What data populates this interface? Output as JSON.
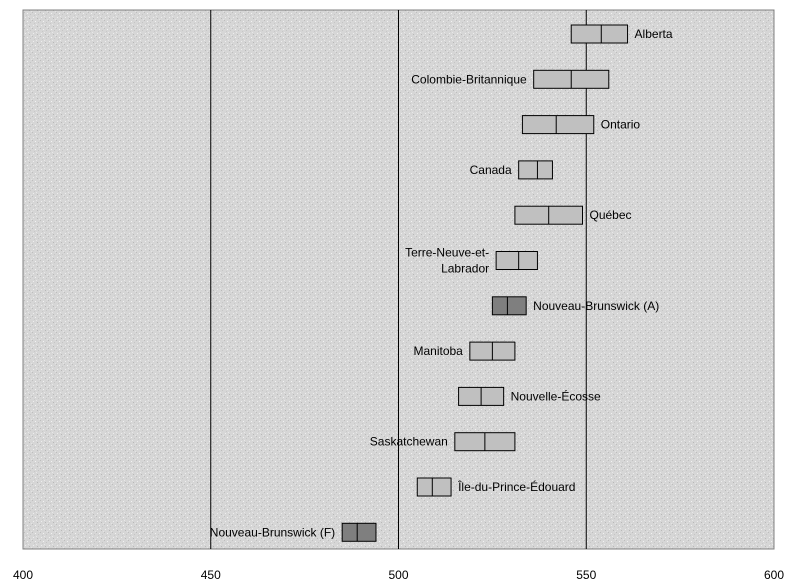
{
  "chart_data": {
    "type": "range-bar",
    "title": "",
    "xlabel": "",
    "ylabel": "",
    "xlim": [
      400,
      600
    ],
    "x_ticks": [
      "400",
      "450",
      "500",
      "550",
      "600"
    ],
    "grid": "vertical",
    "legend": "none",
    "colors": {
      "background": "#d9d9d9",
      "light_box": "#c0c0c0",
      "dark_box": "#7f7f7f",
      "outline": "#000000"
    },
    "series": [
      {
        "label": "Alberta",
        "low": 546,
        "mean": 554,
        "high": 561,
        "color": "light",
        "label_side": "right"
      },
      {
        "label": "Colombie-Britannique",
        "low": 536,
        "mean": 546,
        "high": 556,
        "color": "light",
        "label_side": "left"
      },
      {
        "label": "Ontario",
        "low": 533,
        "mean": 542,
        "high": 552,
        "color": "light",
        "label_side": "right"
      },
      {
        "label": "Canada",
        "low": 532,
        "mean": 537,
        "high": 541,
        "color": "light",
        "label_side": "left"
      },
      {
        "label": "Québec",
        "low": 531,
        "mean": 540,
        "high": 549,
        "color": "light",
        "label_side": "right"
      },
      {
        "label": "Terre-Neuve-et-Labrador",
        "label_lines": [
          "Terre-Neuve-et-",
          "Labrador"
        ],
        "low": 526,
        "mean": 532,
        "high": 537,
        "color": "light",
        "label_side": "left"
      },
      {
        "label": "Nouveau-Brunswick (A)",
        "low": 525,
        "mean": 529,
        "high": 534,
        "color": "dark",
        "label_side": "right"
      },
      {
        "label": "Manitoba",
        "low": 519,
        "mean": 525,
        "high": 531,
        "color": "light",
        "label_side": "left"
      },
      {
        "label": "Nouvelle-Écosse",
        "low": 516,
        "mean": 522,
        "high": 528,
        "color": "light",
        "label_side": "right"
      },
      {
        "label": "Saskatchewan",
        "low": 515,
        "mean": 523,
        "high": 531,
        "color": "light",
        "label_side": "left"
      },
      {
        "label": "Île-du-Prince-Édouard",
        "low": 505,
        "mean": 509,
        "high": 514,
        "color": "light",
        "label_side": "right"
      },
      {
        "label": "Nouveau-Brunswick (F)",
        "low": 485,
        "mean": 489,
        "high": 494,
        "color": "dark",
        "label_side": "left"
      }
    ]
  }
}
